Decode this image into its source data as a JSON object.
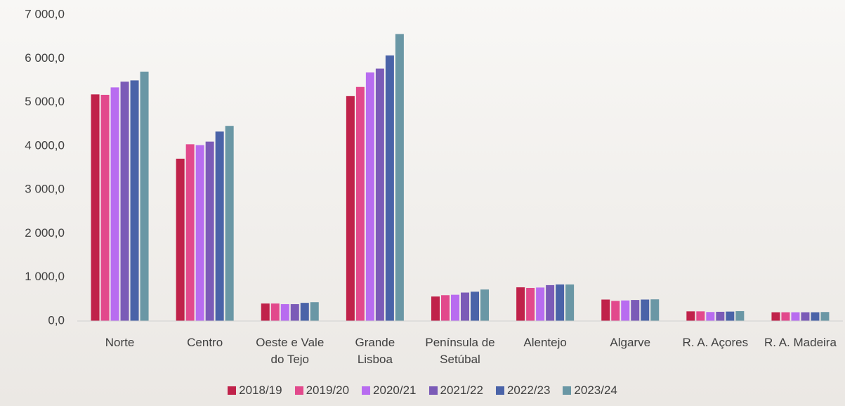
{
  "chart_data": {
    "type": "bar",
    "categories": [
      "Norte",
      "Centro",
      "Oeste e Vale do Tejo",
      "Grande Lisboa",
      "Península de Setúbal",
      "Alentejo",
      "Algarve",
      "R. A. Açores",
      "R. A. Madeira"
    ],
    "series": [
      {
        "name": "2018/19",
        "color": "#c0224a",
        "values": [
          5180,
          3710,
          400,
          5140,
          560,
          770,
          490,
          220,
          200
        ]
      },
      {
        "name": "2019/20",
        "color": "#e2498c",
        "values": [
          5170,
          4040,
          400,
          5350,
          590,
          755,
          460,
          220,
          200
        ]
      },
      {
        "name": "2020/21",
        "color": "#b86cf0",
        "values": [
          5340,
          4020,
          385,
          5680,
          600,
          765,
          470,
          205,
          200
        ]
      },
      {
        "name": "2021/22",
        "color": "#7b5bb7",
        "values": [
          5470,
          4100,
          385,
          5770,
          650,
          820,
          480,
          210,
          200
        ]
      },
      {
        "name": "2022/23",
        "color": "#4a63a8",
        "values": [
          5500,
          4330,
          415,
          6070,
          670,
          835,
          490,
          215,
          200
        ]
      },
      {
        "name": "2023/24",
        "color": "#6a97a5",
        "values": [
          5700,
          4460,
          430,
          6560,
          720,
          835,
          495,
          225,
          205
        ]
      }
    ],
    "ylim": [
      0,
      7000
    ],
    "yticks": [
      {
        "value": 0,
        "label": "0,0"
      },
      {
        "value": 1000,
        "label": "1 000,0"
      },
      {
        "value": 2000,
        "label": "2 000,0"
      },
      {
        "value": 3000,
        "label": "3 000,0"
      },
      {
        "value": 4000,
        "label": "4 000,0"
      },
      {
        "value": 5000,
        "label": "5 000,0"
      },
      {
        "value": 6000,
        "label": "6 000,0"
      },
      {
        "value": 7000,
        "label": "7 000,0"
      }
    ],
    "grid": false,
    "legend": "bottom"
  }
}
